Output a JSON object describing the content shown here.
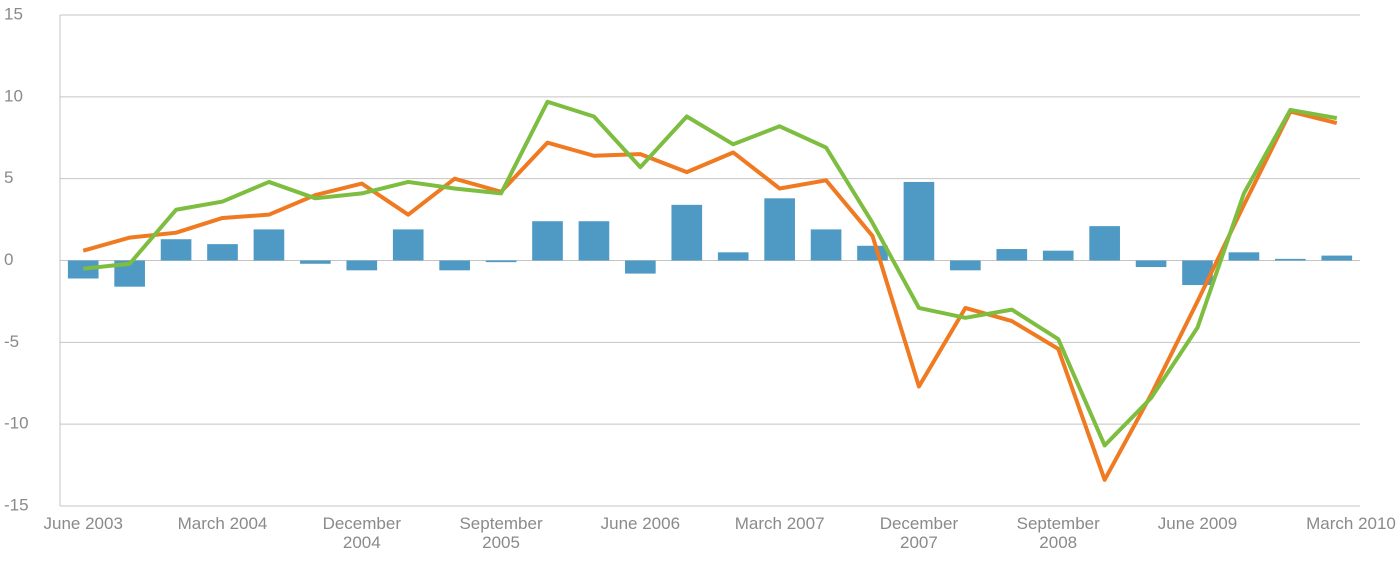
{
  "chart_data": {
    "type": "bar-line",
    "categories": [
      "June 2003",
      null,
      null,
      "March 2004",
      null,
      null,
      "December 2004",
      null,
      null,
      "September 2005",
      null,
      null,
      "June 2006",
      null,
      null,
      "March 2007",
      null,
      null,
      "December 2007",
      null,
      null,
      "September 2008",
      null,
      null,
      "June 2009",
      null,
      null,
      "March 2010"
    ],
    "series": [
      {
        "kind": "bar",
        "color": "#4e9ac4",
        "values": [
          -1.1,
          -1.6,
          1.3,
          1.0,
          1.9,
          -0.2,
          -0.6,
          1.9,
          -0.6,
          -0.1,
          2.4,
          2.4,
          -0.8,
          3.4,
          0.5,
          3.8,
          1.9,
          0.9,
          4.8,
          -0.6,
          0.7,
          0.6,
          2.1,
          -0.4,
          -1.5,
          0.5,
          0.1,
          0.3
        ]
      },
      {
        "kind": "line",
        "color": "#f07a22",
        "values": [
          0.6,
          1.4,
          1.7,
          2.6,
          2.8,
          4.0,
          4.7,
          2.8,
          5.0,
          4.2,
          7.2,
          6.4,
          6.5,
          5.4,
          6.6,
          4.4,
          4.9,
          1.5,
          -7.7,
          -2.9,
          -3.7,
          -5.4,
          -13.4,
          -8.2,
          -2.5,
          3.4,
          9.1,
          8.4
        ]
      },
      {
        "kind": "line",
        "color": "#7dbd3f",
        "values": [
          -0.5,
          -0.2,
          3.1,
          3.6,
          4.8,
          3.8,
          4.1,
          4.8,
          4.4,
          4.1,
          9.7,
          8.8,
          5.7,
          8.8,
          7.1,
          8.2,
          6.9,
          2.3,
          -2.9,
          -3.5,
          -3.0,
          -4.8,
          -11.3,
          -8.4,
          -4.1,
          4.1,
          9.2,
          8.7
        ]
      }
    ],
    "ylim": [
      -15,
      15
    ],
    "yticks": [
      -15,
      -10,
      -5,
      0,
      5,
      10,
      15
    ],
    "grid": true
  }
}
